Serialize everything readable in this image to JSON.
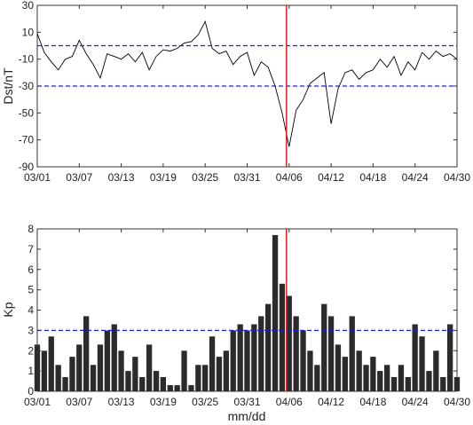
{
  "chart_data": [
    {
      "type": "line",
      "ylabel": "Dst/nT",
      "xlabel": "",
      "ylim": [
        -90,
        30
      ],
      "yticks": [
        -90,
        -70,
        -50,
        -30,
        -10,
        10,
        30
      ],
      "xlim": [
        "03/01",
        "04/30"
      ],
      "xticks": [
        "03/01",
        "03/07",
        "03/13",
        "03/19",
        "03/25",
        "03/31",
        "04/06",
        "04/12",
        "04/18",
        "04/24",
        "04/30"
      ],
      "line_color": "#000000",
      "reference_lines": [
        {
          "y": 0,
          "style": "dashed",
          "color": "#1f1fd6"
        },
        {
          "y": -30,
          "style": "dashed",
          "color": "#1f1fd6"
        }
      ],
      "marker_line": {
        "x": "04/06",
        "color": "#e02020"
      },
      "series": [
        {
          "x": [
            "03/01",
            "03/02",
            "03/03",
            "03/04",
            "03/05",
            "03/06",
            "03/07",
            "03/08",
            "03/09",
            "03/10",
            "03/11",
            "03/12",
            "03/13",
            "03/14",
            "03/15",
            "03/16",
            "03/17",
            "03/18",
            "03/19",
            "03/20",
            "03/21",
            "03/22",
            "03/23",
            "03/24",
            "03/25",
            "03/26",
            "03/27",
            "03/28",
            "03/29",
            "03/30",
            "03/31",
            "04/01",
            "04/02",
            "04/03",
            "04/04",
            "04/05",
            "04/06",
            "04/07",
            "04/08",
            "04/09",
            "04/10",
            "04/11",
            "04/12",
            "04/13",
            "04/14",
            "04/15",
            "04/16",
            "04/17",
            "04/18",
            "04/19",
            "04/20",
            "04/21",
            "04/22",
            "04/23",
            "04/24",
            "04/25",
            "04/26",
            "04/27",
            "04/28",
            "04/29",
            "04/30"
          ],
          "values": [
            9,
            -5,
            -12,
            -18,
            -10,
            -8,
            4,
            -6,
            -14,
            -24,
            -6,
            -8,
            -10,
            -6,
            -12,
            -5,
            -18,
            -8,
            -3,
            -4,
            -2,
            2,
            3,
            8,
            18,
            -2,
            -6,
            -4,
            -14,
            -8,
            -5,
            -22,
            -12,
            -16,
            -30,
            -50,
            -75,
            -48,
            -40,
            -28,
            -24,
            -20,
            -58,
            -32,
            -20,
            -18,
            -25,
            -20,
            -18,
            -10,
            -16,
            -8,
            -22,
            -12,
            -18,
            -5,
            -10,
            -4,
            -8,
            -6,
            -10
          ]
        }
      ]
    },
    {
      "type": "bar",
      "ylabel": "Kp",
      "xlabel": "mm/dd",
      "ylim": [
        0,
        8
      ],
      "yticks": [
        0,
        1,
        2,
        3,
        4,
        5,
        6,
        7,
        8
      ],
      "xlim": [
        "03/01",
        "04/30"
      ],
      "xticks": [
        "03/01",
        "03/07",
        "03/13",
        "03/19",
        "03/25",
        "03/31",
        "04/06",
        "04/12",
        "04/18",
        "04/24",
        "04/30"
      ],
      "bar_color": "#2b2b2b",
      "reference_lines": [
        {
          "y": 3,
          "style": "dashed",
          "color": "#1f1fd6"
        }
      ],
      "marker_line": {
        "x": "04/06",
        "color": "#e02020"
      },
      "series": [
        {
          "x": [
            "03/01",
            "03/02",
            "03/03",
            "03/04",
            "03/05",
            "03/06",
            "03/07",
            "03/08",
            "03/09",
            "03/10",
            "03/11",
            "03/12",
            "03/13",
            "03/14",
            "03/15",
            "03/16",
            "03/17",
            "03/18",
            "03/19",
            "03/20",
            "03/21",
            "03/22",
            "03/23",
            "03/24",
            "03/25",
            "03/26",
            "03/27",
            "03/28",
            "03/29",
            "03/30",
            "03/31",
            "04/01",
            "04/02",
            "04/03",
            "04/04",
            "04/05",
            "04/06",
            "04/07",
            "04/08",
            "04/09",
            "04/10",
            "04/11",
            "04/12",
            "04/13",
            "04/14",
            "04/15",
            "04/16",
            "04/17",
            "04/18",
            "04/19",
            "04/20",
            "04/21",
            "04/22",
            "04/23",
            "04/24",
            "04/25",
            "04/26",
            "04/27",
            "04/28",
            "04/29",
            "04/30"
          ],
          "values": [
            2.3,
            2.0,
            2.7,
            1.3,
            0.7,
            1.7,
            2.3,
            3.7,
            1.3,
            2.3,
            3.0,
            3.3,
            2.0,
            1.0,
            1.7,
            0.7,
            2.3,
            1.0,
            0.7,
            0.3,
            0.3,
            2.0,
            0.3,
            1.3,
            1.3,
            2.7,
            1.7,
            2.0,
            3.0,
            3.3,
            3.0,
            3.3,
            3.7,
            4.3,
            7.7,
            5.3,
            4.7,
            3.7,
            3.0,
            2.0,
            1.3,
            4.3,
            3.7,
            2.3,
            1.7,
            3.7,
            2.0,
            1.3,
            1.7,
            1.0,
            1.3,
            0.7,
            1.3,
            0.7,
            3.3,
            2.7,
            1.0,
            2.0,
            0.7,
            3.3,
            0.7
          ]
        }
      ]
    }
  ]
}
